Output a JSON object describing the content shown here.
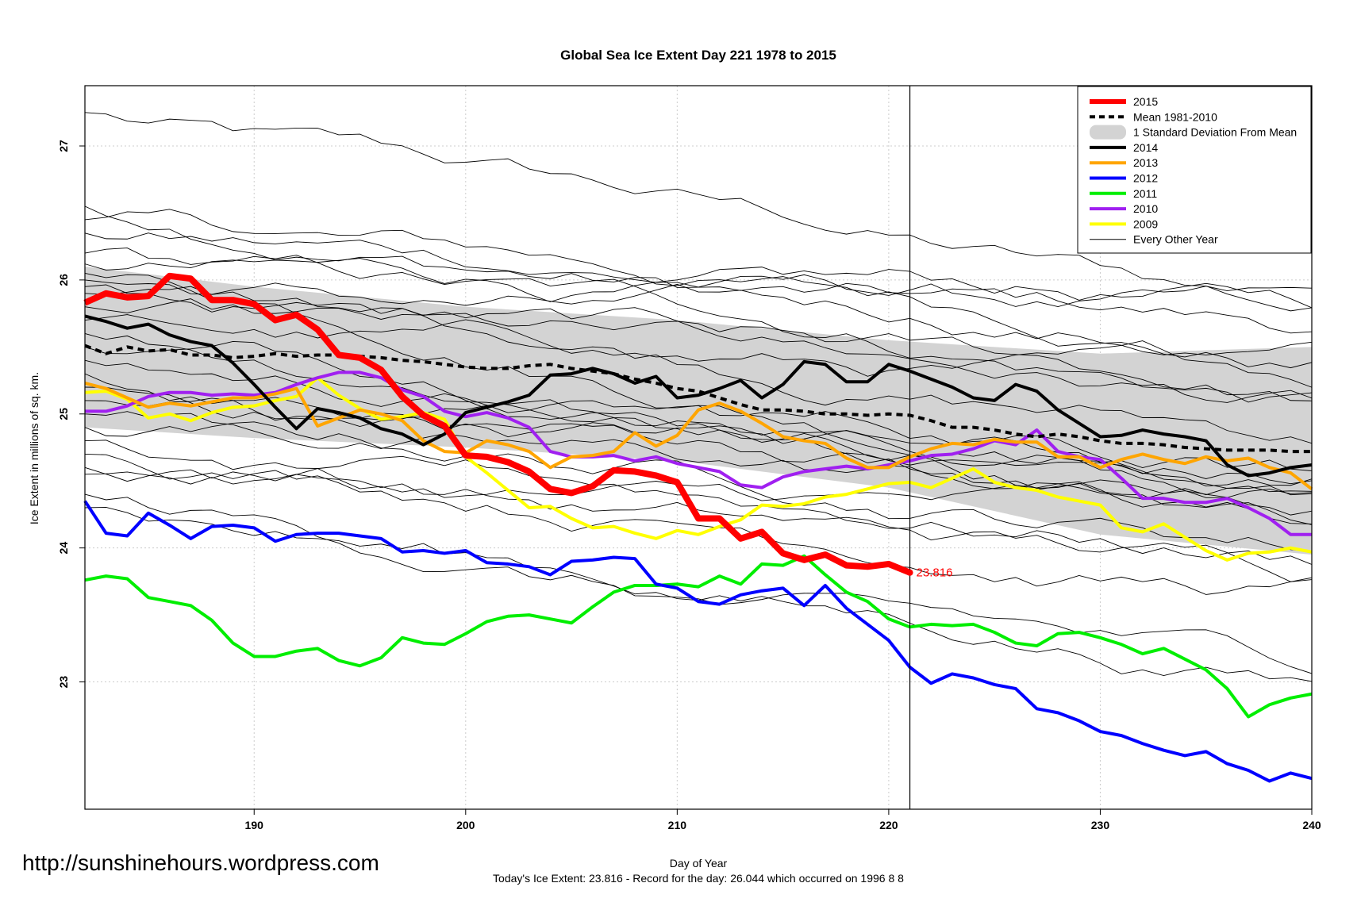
{
  "chart_data": {
    "type": "line",
    "title": "Global Sea Ice Extent Day 221 1978 to 2015",
    "xlabel": "Day of Year",
    "ylabel": "Ice Extent in millions of sq. km.",
    "xlim": [
      182,
      240
    ],
    "ylim": [
      22.05,
      27.45
    ],
    "x_ticks": [
      190,
      200,
      210,
      220,
      230,
      240
    ],
    "y_ticks": [
      23,
      24,
      25,
      26,
      27
    ],
    "grid": true,
    "legend_position": "top-right",
    "current_day": 221,
    "current_value": 23.816,
    "current_value_label": "23.816",
    "legend": [
      {
        "label": "2015",
        "color": "#ff0000",
        "style": "thick"
      },
      {
        "label": "Mean 1981-2010",
        "color": "#000000",
        "style": "dashed"
      },
      {
        "label": "1 Standard Deviation From Mean",
        "color": "#d3d3d3",
        "style": "band"
      },
      {
        "label": "2014",
        "color": "#000000",
        "style": "solid"
      },
      {
        "label": "2013",
        "color": "#ffa500",
        "style": "solid"
      },
      {
        "label": "2012",
        "color": "#0000ff",
        "style": "solid"
      },
      {
        "label": "2011",
        "color": "#00ee00",
        "style": "solid"
      },
      {
        "label": "2010",
        "color": "#a020f0",
        "style": "solid"
      },
      {
        "label": "2009",
        "color": "#ffff00",
        "style": "solid"
      },
      {
        "label": "Every Other Year",
        "color": "#000000",
        "style": "thin"
      }
    ],
    "band": {
      "x": [
        182,
        190,
        200,
        210,
        220,
        230,
        240
      ],
      "upper": [
        26.1,
        25.95,
        25.8,
        25.7,
        25.55,
        25.45,
        25.5
      ],
      "lower": [
        24.9,
        24.82,
        24.75,
        24.65,
        24.45,
        24.1,
        23.95
      ]
    },
    "series": [
      {
        "name": "2015",
        "color": "#ff0000",
        "x": [
          182,
          183,
          184,
          185,
          186,
          187,
          188,
          189,
          190,
          191,
          192,
          193,
          194,
          195,
          196,
          197,
          198,
          199,
          200,
          201,
          202,
          203,
          204,
          205,
          206,
          207,
          208,
          209,
          210,
          211,
          212,
          213,
          214,
          215,
          216,
          217,
          218,
          219,
          220,
          221
        ],
        "values": [
          25.83,
          25.9,
          25.87,
          25.88,
          26.03,
          26.01,
          25.85,
          25.85,
          25.82,
          25.7,
          25.74,
          25.63,
          25.44,
          25.42,
          25.33,
          25.13,
          24.99,
          24.91,
          24.69,
          24.68,
          24.64,
          24.57,
          24.44,
          24.41,
          24.46,
          24.58,
          24.57,
          24.54,
          24.49,
          24.22,
          24.22,
          24.07,
          24.12,
          23.96,
          23.91,
          23.95,
          23.87,
          23.86,
          23.88,
          23.816
        ]
      },
      {
        "name": "Mean 1981-2010",
        "color": "#000000",
        "x": [
          182,
          183,
          184,
          185,
          186,
          187,
          188,
          189,
          190,
          191,
          192,
          193,
          194,
          195,
          196,
          197,
          198,
          199,
          200,
          201,
          202,
          203,
          204,
          205,
          206,
          207,
          208,
          209,
          210,
          211,
          212,
          213,
          214,
          215,
          216,
          217,
          218,
          219,
          220,
          221,
          222,
          223,
          224,
          225,
          226,
          227,
          228,
          229,
          230,
          231,
          232,
          233,
          234,
          235,
          236,
          237,
          238,
          239,
          240
        ],
        "values": [
          25.51,
          25.45,
          25.5,
          25.47,
          25.48,
          25.44,
          25.44,
          25.42,
          25.43,
          25.45,
          25.43,
          25.44,
          25.44,
          25.43,
          25.42,
          25.4,
          25.39,
          25.37,
          25.35,
          25.34,
          25.34,
          25.36,
          25.37,
          25.34,
          25.32,
          25.3,
          25.26,
          25.23,
          25.19,
          25.17,
          25.12,
          25.07,
          25.03,
          25.03,
          25.02,
          25.0,
          25.0,
          24.99,
          25.0,
          24.99,
          24.95,
          24.9,
          24.9,
          24.88,
          24.85,
          24.83,
          24.85,
          24.83,
          24.8,
          24.78,
          24.78,
          24.77,
          24.75,
          24.74,
          24.73,
          24.73,
          24.73,
          24.72,
          24.72
        ]
      },
      {
        "name": "2014",
        "color": "#000000",
        "x": [
          182,
          183,
          184,
          185,
          186,
          187,
          188,
          189,
          190,
          191,
          192,
          193,
          194,
          195,
          196,
          197,
          198,
          199,
          200,
          201,
          202,
          203,
          204,
          205,
          206,
          207,
          208,
          209,
          210,
          211,
          212,
          213,
          214,
          215,
          216,
          217,
          218,
          219,
          220,
          221,
          222,
          223,
          224,
          225,
          226,
          227,
          228,
          229,
          230,
          231,
          232,
          233,
          234,
          235,
          236,
          237,
          238,
          239,
          240
        ],
        "values": [
          25.73,
          25.69,
          25.64,
          25.67,
          25.59,
          25.54,
          25.51,
          25.38,
          25.22,
          25.05,
          24.89,
          25.04,
          25.01,
          24.97,
          24.89,
          24.85,
          24.77,
          24.85,
          25.01,
          25.05,
          25.09,
          25.14,
          25.29,
          25.3,
          25.34,
          25.3,
          25.23,
          25.28,
          25.12,
          25.14,
          25.19,
          25.25,
          25.12,
          25.22,
          25.39,
          25.37,
          25.24,
          25.24,
          25.37,
          25.32,
          25.26,
          25.2,
          25.12,
          25.1,
          25.22,
          25.17,
          25.03,
          24.93,
          24.83,
          24.84,
          24.88,
          24.85,
          24.83,
          24.8,
          24.62,
          24.54,
          24.56,
          24.6,
          24.62
        ]
      },
      {
        "name": "2013",
        "color": "#ffa500",
        "x": [
          182,
          183,
          184,
          185,
          186,
          187,
          188,
          189,
          190,
          191,
          192,
          193,
          194,
          195,
          196,
          197,
          198,
          199,
          200,
          201,
          202,
          203,
          204,
          205,
          206,
          207,
          208,
          209,
          210,
          211,
          212,
          213,
          214,
          215,
          216,
          217,
          218,
          219,
          220,
          221,
          222,
          223,
          224,
          225,
          226,
          227,
          228,
          229,
          230,
          231,
          232,
          233,
          234,
          235,
          236,
          237,
          238,
          239,
          240
        ],
        "values": [
          25.23,
          25.19,
          25.12,
          25.05,
          25.08,
          25.06,
          25.09,
          25.12,
          25.12,
          25.15,
          25.19,
          24.91,
          24.97,
          25.03,
          25.0,
          24.95,
          24.8,
          24.72,
          24.71,
          24.8,
          24.77,
          24.72,
          24.6,
          24.68,
          24.69,
          24.72,
          24.86,
          24.76,
          24.84,
          25.03,
          25.08,
          25.02,
          24.93,
          24.83,
          24.8,
          24.78,
          24.67,
          24.6,
          24.6,
          24.68,
          24.74,
          24.78,
          24.77,
          24.81,
          24.79,
          24.79,
          24.68,
          24.68,
          24.6,
          24.66,
          24.7,
          24.66,
          24.63,
          24.68,
          24.65,
          24.67,
          24.6,
          24.56,
          24.44
        ]
      },
      {
        "name": "2012",
        "color": "#0000ff",
        "x": [
          182,
          183,
          184,
          185,
          186,
          187,
          188,
          189,
          190,
          191,
          192,
          193,
          194,
          195,
          196,
          197,
          198,
          199,
          200,
          201,
          202,
          203,
          204,
          205,
          206,
          207,
          208,
          209,
          210,
          211,
          212,
          213,
          214,
          215,
          216,
          217,
          218,
          219,
          220,
          221,
          222,
          223,
          224,
          225,
          226,
          227,
          228,
          229,
          230,
          231,
          232,
          233,
          234,
          235,
          236,
          237,
          238,
          239,
          240
        ],
        "values": [
          24.35,
          24.11,
          24.09,
          24.26,
          24.17,
          24.07,
          24.16,
          24.17,
          24.15,
          24.05,
          24.1,
          24.11,
          24.11,
          24.09,
          24.07,
          23.97,
          23.98,
          23.96,
          23.98,
          23.89,
          23.88,
          23.86,
          23.8,
          23.9,
          23.91,
          23.93,
          23.92,
          23.73,
          23.7,
          23.6,
          23.58,
          23.65,
          23.68,
          23.7,
          23.57,
          23.72,
          23.55,
          23.43,
          23.31,
          23.11,
          22.99,
          23.06,
          23.03,
          22.98,
          22.95,
          22.8,
          22.77,
          22.71,
          22.63,
          22.6,
          22.54,
          22.49,
          22.45,
          22.48,
          22.39,
          22.34,
          22.26,
          22.32,
          22.28
        ]
      },
      {
        "name": "2011",
        "color": "#00ee00",
        "x": [
          182,
          183,
          184,
          185,
          186,
          187,
          188,
          189,
          190,
          191,
          192,
          193,
          194,
          195,
          196,
          197,
          198,
          199,
          200,
          201,
          202,
          203,
          204,
          205,
          206,
          207,
          208,
          209,
          210,
          211,
          212,
          213,
          214,
          215,
          216,
          217,
          218,
          219,
          220,
          221,
          222,
          223,
          224,
          225,
          226,
          227,
          228,
          229,
          230,
          231,
          232,
          233,
          234,
          235,
          236,
          237,
          238,
          239,
          240
        ],
        "values": [
          23.76,
          23.79,
          23.77,
          23.63,
          23.6,
          23.57,
          23.46,
          23.29,
          23.19,
          23.19,
          23.23,
          23.25,
          23.16,
          23.12,
          23.18,
          23.33,
          23.29,
          23.28,
          23.36,
          23.45,
          23.49,
          23.5,
          23.47,
          23.44,
          23.56,
          23.67,
          23.72,
          23.72,
          23.73,
          23.71,
          23.79,
          23.73,
          23.88,
          23.87,
          23.94,
          23.8,
          23.67,
          23.6,
          23.47,
          23.41,
          23.43,
          23.42,
          23.43,
          23.37,
          23.29,
          23.27,
          23.36,
          23.37,
          23.33,
          23.28,
          23.21,
          23.25,
          23.17,
          23.09,
          22.95,
          22.74,
          22.83,
          22.88,
          22.91
        ]
      },
      {
        "name": "2010",
        "color": "#a020f0",
        "x": [
          182,
          183,
          184,
          185,
          186,
          187,
          188,
          189,
          190,
          191,
          192,
          193,
          194,
          195,
          196,
          197,
          198,
          199,
          200,
          201,
          202,
          203,
          204,
          205,
          206,
          207,
          208,
          209,
          210,
          211,
          212,
          213,
          214,
          215,
          216,
          217,
          218,
          219,
          220,
          221,
          222,
          223,
          224,
          225,
          226,
          227,
          228,
          229,
          230,
          231,
          232,
          233,
          234,
          235,
          236,
          237,
          238,
          239,
          240
        ],
        "values": [
          25.02,
          25.02,
          25.06,
          25.13,
          25.16,
          25.16,
          25.14,
          25.15,
          25.14,
          25.16,
          25.22,
          25.27,
          25.31,
          25.31,
          25.27,
          25.18,
          25.13,
          25.02,
          24.98,
          25.01,
          24.97,
          24.9,
          24.72,
          24.68,
          24.68,
          24.69,
          24.65,
          24.68,
          24.63,
          24.6,
          24.57,
          24.47,
          24.45,
          24.53,
          24.57,
          24.59,
          24.61,
          24.59,
          24.62,
          24.65,
          24.69,
          24.7,
          24.74,
          24.8,
          24.77,
          24.88,
          24.72,
          24.68,
          24.66,
          24.52,
          24.37,
          24.37,
          24.34,
          24.34,
          24.37,
          24.3,
          24.22,
          24.1,
          24.1
        ]
      },
      {
        "name": "2009",
        "color": "#ffff00",
        "x": [
          182,
          183,
          184,
          185,
          186,
          187,
          188,
          189,
          190,
          191,
          192,
          193,
          194,
          195,
          196,
          197,
          198,
          199,
          200,
          201,
          202,
          203,
          204,
          205,
          206,
          207,
          208,
          209,
          210,
          211,
          212,
          213,
          214,
          215,
          216,
          217,
          218,
          219,
          220,
          221,
          222,
          223,
          224,
          225,
          226,
          227,
          228,
          229,
          230,
          231,
          232,
          233,
          234,
          235,
          236,
          237,
          238,
          239,
          240
        ],
        "values": [
          25.16,
          25.17,
          25.11,
          24.97,
          25.0,
          24.95,
          25.01,
          25.05,
          25.06,
          25.1,
          25.13,
          25.27,
          25.14,
          25.04,
          24.96,
          24.98,
          25.01,
          24.96,
          24.68,
          24.56,
          24.43,
          24.3,
          24.31,
          24.22,
          24.15,
          24.16,
          24.11,
          24.07,
          24.13,
          24.1,
          24.16,
          24.21,
          24.32,
          24.31,
          24.33,
          24.38,
          24.4,
          24.44,
          24.48,
          24.49,
          24.45,
          24.52,
          24.59,
          24.49,
          24.45,
          24.43,
          24.38,
          24.35,
          24.32,
          24.15,
          24.12,
          24.18,
          24.08,
          23.98,
          23.91,
          23.96,
          23.97,
          24.0,
          23.97
        ]
      }
    ]
  },
  "footer": {
    "url": "http://sunshinehours.wordpress.com",
    "summary": "Today's Ice Extent: 23.816  - Record for the day: 26.044 which occurred on 1996 8 8"
  }
}
